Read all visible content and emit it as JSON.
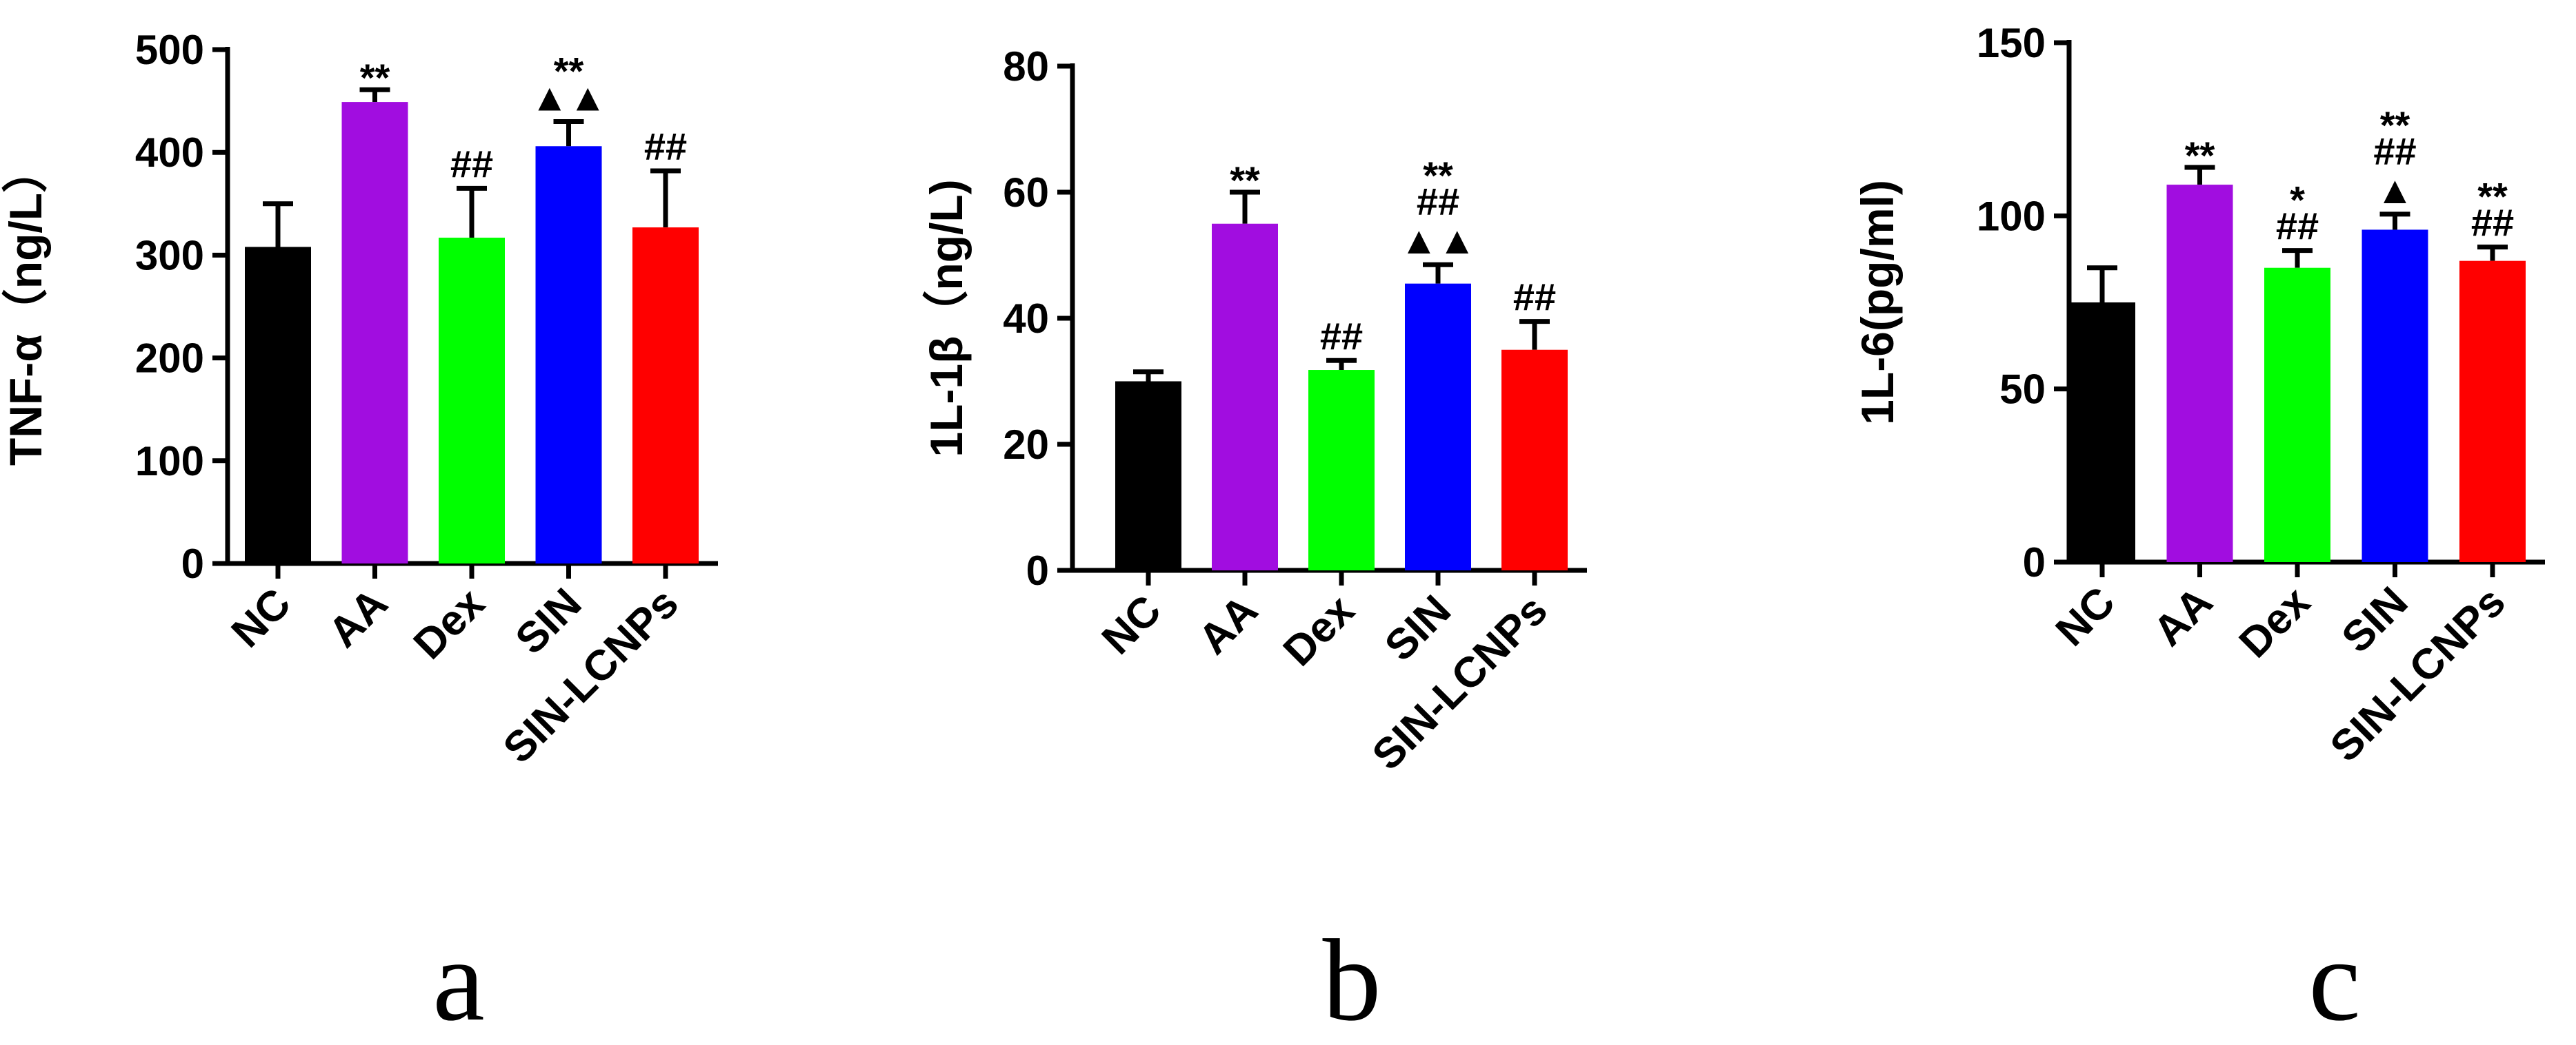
{
  "chart_data": [
    {
      "type": "bar",
      "categories": [
        "NC",
        "AA",
        "Dex",
        "SIN",
        "SIN-LCNPs"
      ],
      "values": [
        308,
        449,
        317,
        406,
        327
      ],
      "errors": [
        42,
        12,
        48,
        24,
        55
      ],
      "colors": [
        "#000000",
        "#A10DE0",
        "#00FF00",
        "#0000FF",
        "#FF0000"
      ],
      "ylabel": "TNF-α（ng/L）",
      "ylim": [
        0,
        500
      ],
      "yticks": [
        0,
        100,
        200,
        300,
        400,
        500
      ],
      "annotations": [
        [],
        [
          "**"
        ],
        [
          "##"
        ],
        [
          "**",
          "▲▲"
        ],
        [
          "##"
        ]
      ],
      "panel_label": "a",
      "grid": false
    },
    {
      "type": "bar",
      "categories": [
        "NC",
        "AA",
        "Dex",
        "SIN",
        "SIN-LCNPs"
      ],
      "values": [
        30,
        55,
        31.8,
        45.5,
        35
      ],
      "errors": [
        1.5,
        5,
        1.5,
        3,
        4.5
      ],
      "colors": [
        "#000000",
        "#A10DE0",
        "#00FF00",
        "#0000FF",
        "#FF0000"
      ],
      "ylabel": "1L-1β（ng/L)",
      "ylim": [
        0,
        80
      ],
      "yticks": [
        0,
        20,
        40,
        60,
        80
      ],
      "annotations": [
        [],
        [
          "**"
        ],
        [
          "##"
        ],
        [
          "**",
          "##",
          "▲▲"
        ],
        [
          "##"
        ]
      ],
      "panel_label": "b",
      "grid": false
    },
    {
      "type": "bar",
      "categories": [
        "NC",
        "AA",
        "Dex",
        "SIN",
        "SIN-LCNPs"
      ],
      "values": [
        75,
        109,
        85,
        96,
        87
      ],
      "errors": [
        10,
        5,
        5,
        4.5,
        4
      ],
      "colors": [
        "#000000",
        "#A10DE0",
        "#00FF00",
        "#0000FF",
        "#FF0000"
      ],
      "ylabel": "1L-6(pg/ml)",
      "ylim": [
        0,
        150
      ],
      "yticks": [
        0,
        50,
        100,
        150
      ],
      "annotations": [
        [],
        [
          "**"
        ],
        [
          "*",
          "##"
        ],
        [
          "**",
          "##",
          "▲"
        ],
        [
          "**",
          "##"
        ]
      ],
      "panel_label": "c",
      "grid": false
    }
  ]
}
